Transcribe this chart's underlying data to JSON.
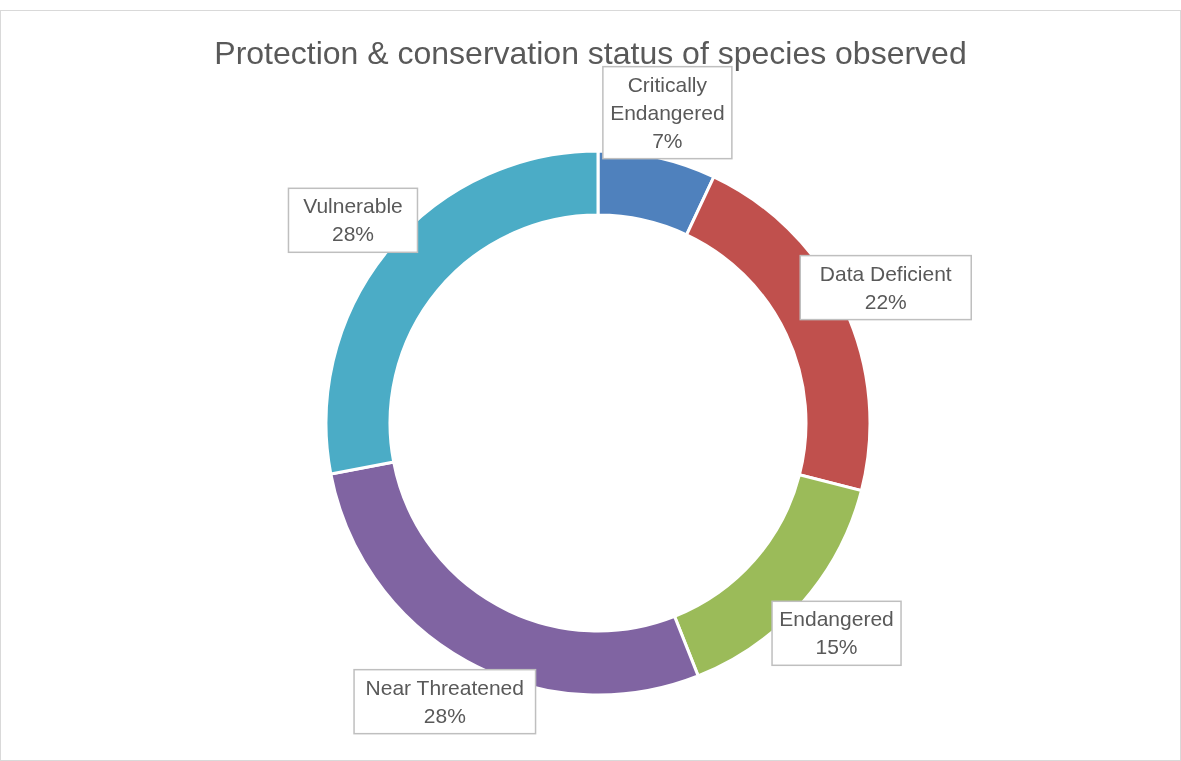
{
  "chart_data": {
    "type": "donut",
    "title": "Protection & conservation status of species observed",
    "categories": [
      "Critically Endangered",
      "Data Deficient",
      "Endangered",
      "Near Threatened",
      "Vulnerable"
    ],
    "values": [
      7,
      22,
      15,
      28,
      28
    ],
    "colors": [
      "#4f81bd",
      "#c0504d",
      "#9bbb59",
      "#8064a2",
      "#4bacc6"
    ],
    "value_labels": [
      "7%",
      "22%",
      "15%",
      "28%",
      "28%"
    ],
    "legend": false
  }
}
